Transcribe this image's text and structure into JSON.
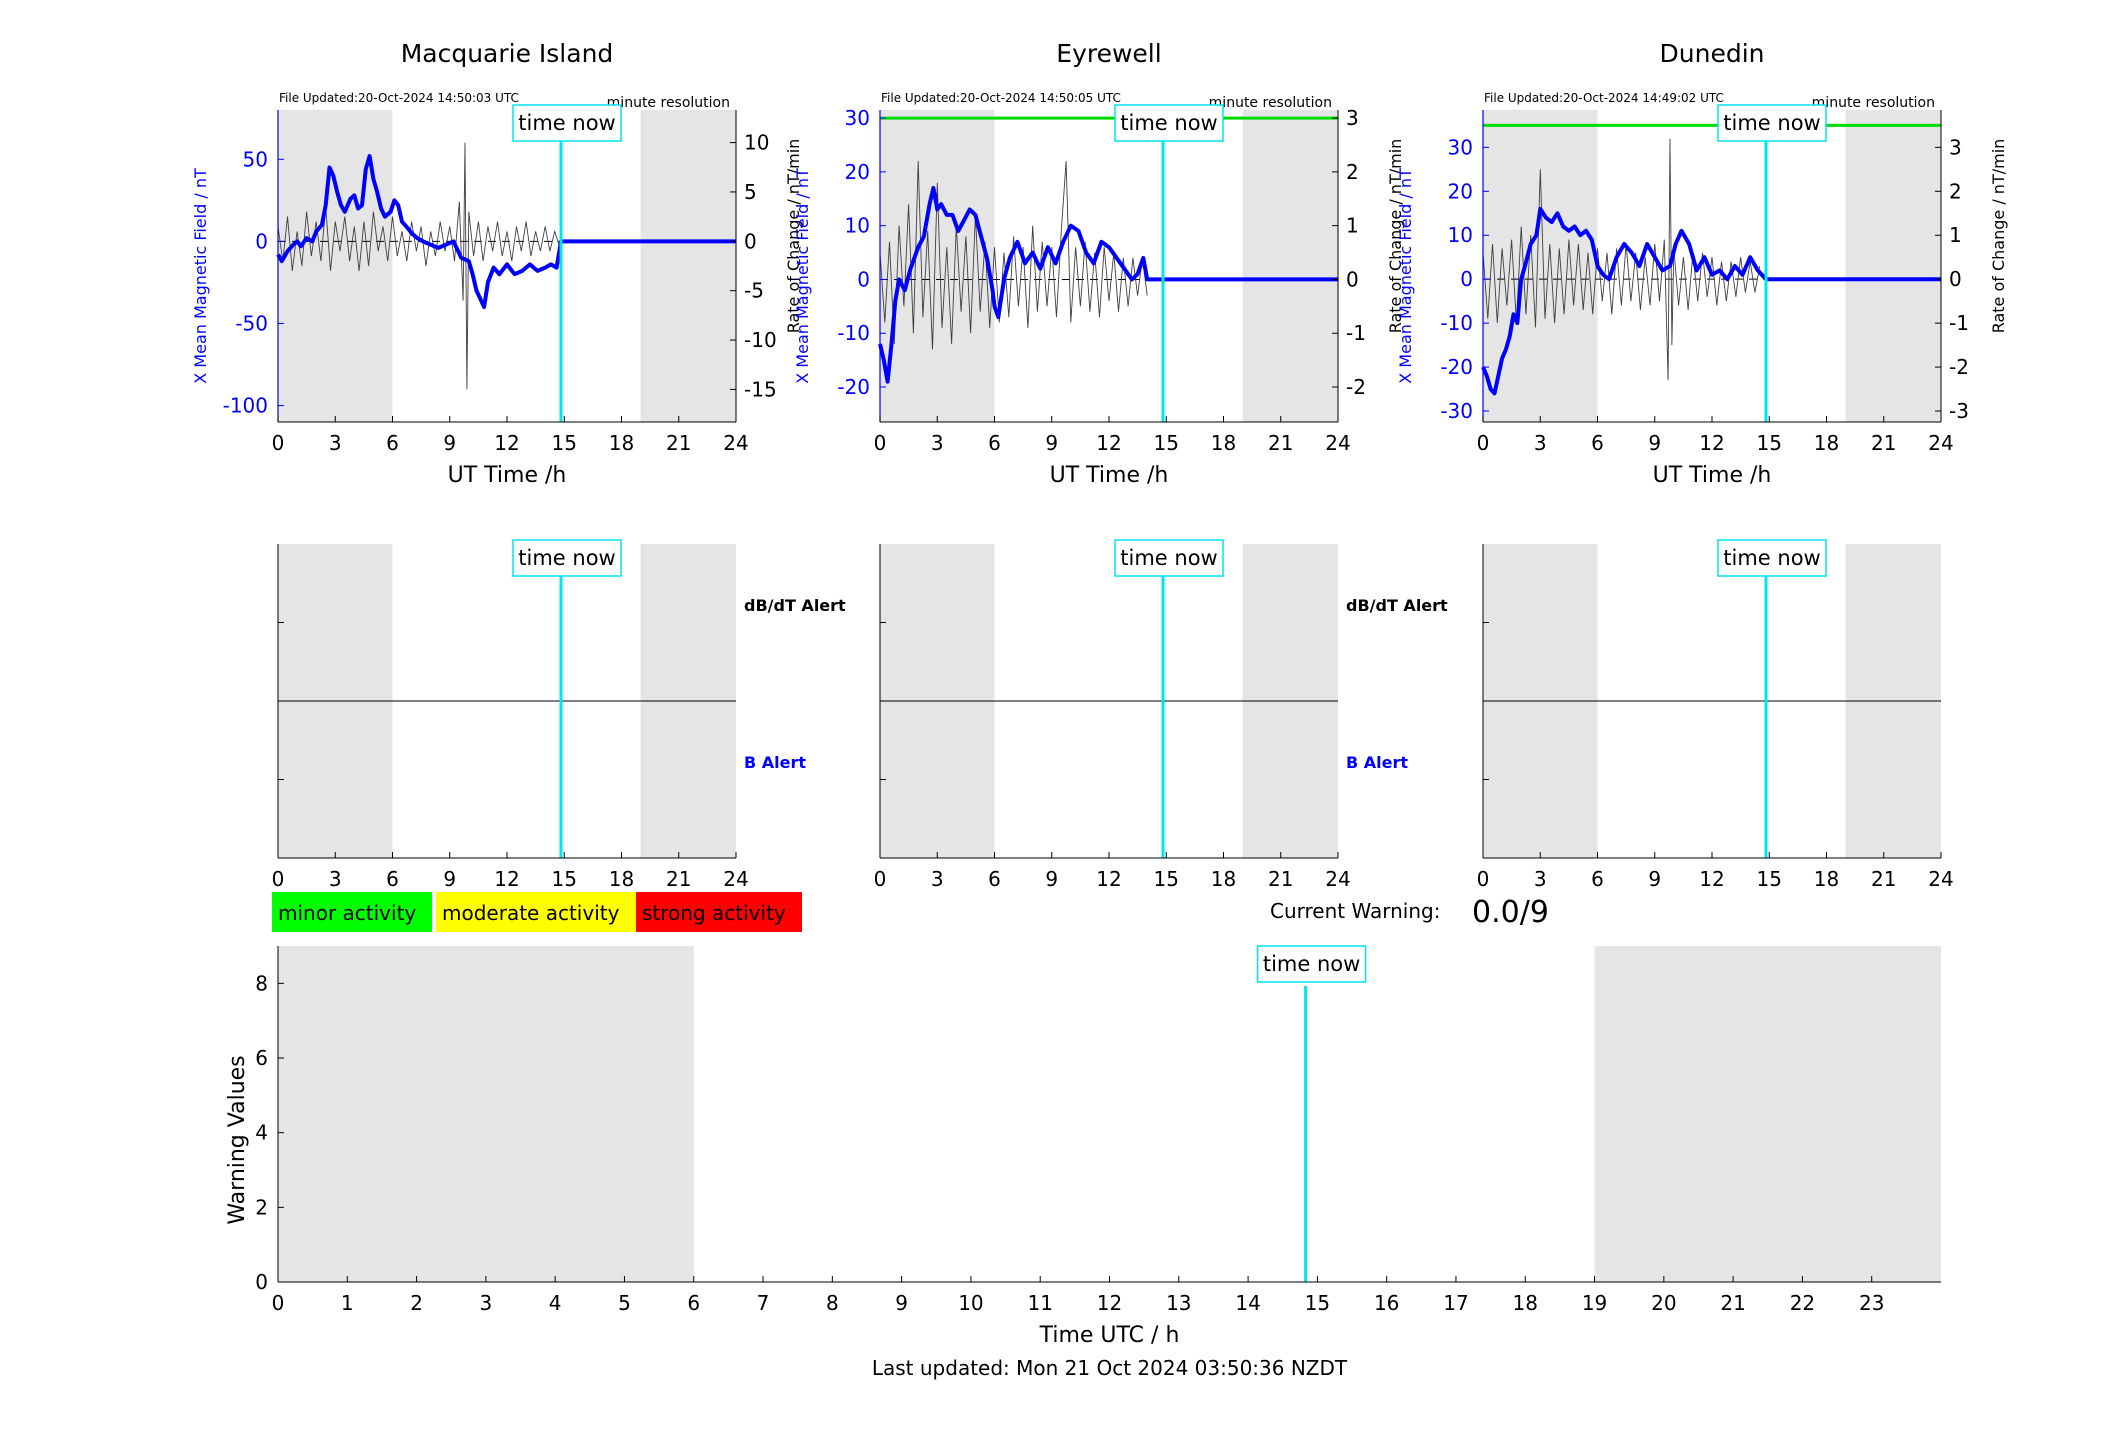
{
  "time_now_label": "time now",
  "footer": {
    "last_updated": "Last updated: Mon 21 Oct 2024 03:50:36 NZDT"
  },
  "colors": {
    "field": "#0000ff",
    "rate": "#404040",
    "time_now": "#00e5ee",
    "threshold": "#00dd00",
    "night_shade": "#e5e5e5",
    "minor": "#00ff00",
    "moderate": "#ffff00",
    "strong": "#ff0000"
  },
  "stations": [
    {
      "name": "Macquarie Island",
      "file_updated": "File Updated:20-Oct-2024 14:50:03 UTC",
      "resolution": "minute resolution",
      "ylabel_left": "X Mean Magnetic Field / nT",
      "ylabel_right": "Rate of Change / nT/min",
      "dbdt_alert": "dB/dT Alert",
      "b_alert": "B Alert"
    },
    {
      "name": "Eyrewell",
      "file_updated": "File Updated:20-Oct-2024 14:50:05 UTC",
      "resolution": "minute resolution",
      "ylabel_left": "X Mean Magnetic Field / nT",
      "ylabel_right": "Rate of Change / nT/min",
      "dbdt_alert": "dB/dT Alert",
      "b_alert": "B Alert"
    },
    {
      "name": "Dunedin",
      "file_updated": "File Updated:20-Oct-2024 14:49:02 UTC",
      "resolution": "minute resolution",
      "ylabel_left": "X Mean Magnetic Field / nT",
      "ylabel_right": "Rate of Change / nT/min",
      "dbdt_alert": "",
      "b_alert": ""
    }
  ],
  "legend": {
    "minor": "minor activity",
    "moderate": "moderate activity",
    "strong": "strong activity"
  },
  "current_warning": {
    "label": "Current Warning:",
    "value": "0.0/9"
  },
  "chart_data": [
    {
      "type": "line",
      "title": "Macquarie Island",
      "xlabel": "UT Time /h",
      "ylabel": "X Mean Magnetic Field / nT",
      "ylabel_right": "Rate of Change / nT/min",
      "xlim": [
        0,
        24
      ],
      "ylim": [
        -110,
        80
      ],
      "ylim_right": [
        -18.3,
        13.3
      ],
      "xticks": [
        0,
        3,
        6,
        9,
        12,
        15,
        18,
        21,
        24
      ],
      "yticks": [
        -100,
        -50,
        0,
        50
      ],
      "yticks_right": [
        -15,
        -10,
        -5,
        0,
        5,
        10
      ],
      "time_now": 14.83,
      "shaded_hours": [
        [
          0,
          6
        ],
        [
          19,
          24
        ]
      ],
      "series": [
        {
          "name": "X Mean Magnetic Field",
          "x": [
            0,
            0.2,
            0.5,
            0.8,
            1.0,
            1.2,
            1.5,
            1.8,
            2.0,
            2.3,
            2.5,
            2.7,
            2.9,
            3.1,
            3.3,
            3.5,
            3.8,
            4.0,
            4.2,
            4.4,
            4.6,
            4.8,
            5.0,
            5.2,
            5.4,
            5.6,
            5.9,
            6.1,
            6.3,
            6.5,
            6.8,
            7.0,
            7.3,
            7.6,
            8.0,
            8.4,
            8.8,
            9.2,
            9.6,
            10.0,
            10.2,
            10.4,
            10.6,
            10.8,
            11.0,
            11.3,
            11.6,
            12.0,
            12.4,
            12.8,
            13.2,
            13.6,
            14.0,
            14.3,
            14.6,
            14.83,
            24
          ],
          "values": [
            -8,
            -12,
            -6,
            -2,
            0,
            -3,
            2,
            0,
            6,
            10,
            22,
            45,
            40,
            30,
            22,
            18,
            26,
            28,
            20,
            22,
            44,
            52,
            38,
            30,
            20,
            15,
            18,
            25,
            22,
            12,
            8,
            5,
            2,
            0,
            -2,
            -4,
            -2,
            0,
            -10,
            -12,
            -20,
            -30,
            -35,
            -40,
            -25,
            -16,
            -20,
            -14,
            -20,
            -18,
            -14,
            -18,
            -16,
            -14,
            -16,
            0,
            0
          ]
        },
        {
          "name": "Rate of Change",
          "x": [
            0,
            0.25,
            0.5,
            0.75,
            1.0,
            1.25,
            1.5,
            1.75,
            2.0,
            2.25,
            2.5,
            2.75,
            3.0,
            3.25,
            3.5,
            3.75,
            4.0,
            4.25,
            4.5,
            4.75,
            5.0,
            5.25,
            5.5,
            5.75,
            6.0,
            6.25,
            6.5,
            6.75,
            7.0,
            7.25,
            7.5,
            7.75,
            8.0,
            8.25,
            8.5,
            8.75,
            9.0,
            9.25,
            9.5,
            9.7,
            9.8,
            9.9,
            10.0,
            10.25,
            10.5,
            10.75,
            11.0,
            11.25,
            11.5,
            11.75,
            12.0,
            12.25,
            12.5,
            12.75,
            13.0,
            13.25,
            13.5,
            13.75,
            14.0,
            14.25,
            14.5,
            14.75
          ],
          "values": [
            1.5,
            -2,
            2.5,
            -3,
            1,
            -2.5,
            3,
            -1.5,
            2,
            -2,
            3.5,
            -3,
            2,
            -1,
            2.5,
            -2,
            1.5,
            -3,
            2,
            -2.5,
            3,
            -1,
            1.5,
            -2,
            2.5,
            -1.5,
            1,
            -2,
            2,
            -1,
            1.5,
            -2.5,
            1,
            -1.5,
            2,
            -1,
            1.5,
            -2,
            4,
            -6,
            10,
            -15,
            3,
            -1.5,
            2,
            -2,
            1.5,
            -1,
            2,
            -1.5,
            1,
            -2,
            1.5,
            -1,
            2,
            -1.5,
            1,
            -1,
            1.5,
            -1,
            1,
            -0.5
          ]
        }
      ]
    },
    {
      "type": "line",
      "title": "Eyrewell",
      "xlabel": "UT Time /h",
      "ylabel": "X Mean Magnetic Field / nT",
      "ylabel_right": "Rate of Change / nT/min",
      "xlim": [
        0,
        24
      ],
      "ylim": [
        -26.5,
        31.5
      ],
      "ylim_right": [
        -2.65,
        3.15
      ],
      "xticks": [
        0,
        3,
        6,
        9,
        12,
        15,
        18,
        21,
        24
      ],
      "yticks": [
        -20,
        -10,
        0,
        10,
        20,
        30
      ],
      "yticks_right": [
        -2,
        -1,
        0,
        1,
        2,
        3
      ],
      "threshold": 30,
      "time_now": 14.83,
      "shaded_hours": [
        [
          0,
          6
        ],
        [
          19,
          24
        ]
      ],
      "series": [
        {
          "name": "X Mean Magnetic Field",
          "x": [
            0,
            0.2,
            0.4,
            0.6,
            0.8,
            1.0,
            1.3,
            1.6,
            2.0,
            2.3,
            2.6,
            2.8,
            3.0,
            3.2,
            3.5,
            3.8,
            4.1,
            4.4,
            4.7,
            5.0,
            5.3,
            5.6,
            5.9,
            6.0,
            6.2,
            6.5,
            6.8,
            7.2,
            7.6,
            8.0,
            8.4,
            8.8,
            9.2,
            9.6,
            10.0,
            10.4,
            10.8,
            11.2,
            11.6,
            12.0,
            12.4,
            12.8,
            13.2,
            13.5,
            13.8,
            14.0,
            14.3,
            14.6,
            14.83,
            24
          ],
          "values": [
            -12,
            -15,
            -19,
            -12,
            -4,
            0,
            -2,
            2,
            6,
            8,
            14,
            17,
            13,
            14,
            12,
            12,
            9,
            11,
            13,
            12,
            8,
            4,
            -2,
            -5,
            -7,
            0,
            4,
            7,
            3,
            5,
            2,
            6,
            3,
            7,
            10,
            9,
            5,
            3,
            7,
            6,
            4,
            2,
            0,
            1,
            4,
            0,
            0,
            0,
            0,
            0
          ]
        },
        {
          "name": "Rate of Change",
          "x": [
            0,
            0.25,
            0.5,
            0.75,
            1.0,
            1.25,
            1.5,
            1.75,
            2.0,
            2.25,
            2.5,
            2.75,
            3.0,
            3.25,
            3.5,
            3.75,
            4.0,
            4.25,
            4.5,
            4.75,
            5.0,
            5.25,
            5.5,
            5.75,
            6.0,
            6.25,
            6.5,
            6.75,
            7.0,
            7.25,
            7.5,
            7.75,
            8.0,
            8.25,
            8.5,
            8.75,
            9.0,
            9.25,
            9.5,
            9.75,
            10.0,
            10.25,
            10.5,
            10.75,
            11.0,
            11.25,
            11.5,
            11.75,
            12.0,
            12.25,
            12.5,
            12.75,
            13.0,
            13.25,
            13.5,
            13.75,
            14.0
          ],
          "values": [
            0.5,
            -0.8,
            0.7,
            -1.2,
            1.0,
            -0.5,
            1.4,
            -1.0,
            2.2,
            -0.7,
            0.9,
            -1.3,
            1.8,
            -0.9,
            0.6,
            -1.2,
            1.0,
            -0.6,
            0.8,
            -1.0,
            1.2,
            -0.6,
            0.7,
            -0.9,
            0.6,
            -0.8,
            0.5,
            -0.7,
            0.8,
            -0.5,
            0.6,
            -0.9,
            1.0,
            -0.6,
            0.7,
            -0.5,
            0.6,
            -0.7,
            0.9,
            2.2,
            -0.8,
            0.6,
            -0.5,
            0.7,
            -0.6,
            0.5,
            -0.7,
            0.6,
            -0.4,
            0.5,
            -0.6,
            0.4,
            -0.5,
            0.4,
            -0.3,
            0.4,
            -0.3
          ]
        }
      ]
    },
    {
      "type": "line",
      "title": "Dunedin",
      "xlabel": "UT Time /h",
      "ylabel": "X Mean Magnetic Field / nT",
      "ylabel_right": "Rate of Change / nT/min",
      "xlim": [
        0,
        24
      ],
      "ylim": [
        -32.5,
        38.5
      ],
      "ylim_right": [
        -3.25,
        3.85
      ],
      "xticks": [
        0,
        3,
        6,
        9,
        12,
        15,
        18,
        21,
        24
      ],
      "yticks": [
        -30,
        -20,
        -10,
        0,
        10,
        20,
        30
      ],
      "yticks_right": [
        -3,
        -2,
        -1,
        0,
        1,
        2,
        3
      ],
      "threshold": 35,
      "time_now": 14.83,
      "shaded_hours": [
        [
          0,
          6
        ],
        [
          19,
          24
        ]
      ],
      "series": [
        {
          "name": "X Mean Magnetic Field",
          "x": [
            0,
            0.2,
            0.4,
            0.6,
            0.8,
            1.0,
            1.2,
            1.4,
            1.6,
            1.8,
            2.0,
            2.2,
            2.5,
            2.8,
            3.0,
            3.3,
            3.6,
            3.9,
            4.2,
            4.5,
            4.8,
            5.1,
            5.4,
            5.7,
            6.0,
            6.3,
            6.6,
            7.0,
            7.4,
            7.8,
            8.2,
            8.6,
            9.0,
            9.4,
            9.8,
            10.1,
            10.4,
            10.8,
            11.2,
            11.6,
            12.0,
            12.4,
            12.8,
            13.2,
            13.6,
            14.0,
            14.4,
            14.83,
            24
          ],
          "values": [
            -20,
            -22,
            -25,
            -26,
            -22,
            -18,
            -16,
            -13,
            -8,
            -10,
            0,
            3,
            8,
            10,
            16,
            14,
            13,
            15,
            12,
            11,
            12,
            10,
            11,
            9,
            3,
            1,
            0,
            5,
            8,
            6,
            3,
            8,
            5,
            2,
            3,
            8,
            11,
            8,
            2,
            5,
            1,
            2,
            0,
            3,
            1,
            5,
            2,
            0,
            0
          ]
        },
        {
          "name": "Rate of Change",
          "x": [
            0,
            0.25,
            0.5,
            0.75,
            1.0,
            1.25,
            1.5,
            1.75,
            2.0,
            2.25,
            2.5,
            2.75,
            3.0,
            3.25,
            3.5,
            3.75,
            4.0,
            4.25,
            4.5,
            4.75,
            5.0,
            5.25,
            5.5,
            5.75,
            6.0,
            6.25,
            6.5,
            6.75,
            7.0,
            7.25,
            7.5,
            7.75,
            8.0,
            8.25,
            8.5,
            8.75,
            9.0,
            9.25,
            9.5,
            9.7,
            9.8,
            9.9,
            10.0,
            10.25,
            10.5,
            10.75,
            11.0,
            11.25,
            11.5,
            11.75,
            12.0,
            12.25,
            12.5,
            12.75,
            13.0,
            13.25,
            13.5,
            13.75,
            14.0,
            14.25,
            14.5
          ],
          "values": [
            0.6,
            -0.9,
            0.8,
            -1.0,
            0.7,
            -0.6,
            0.9,
            -1.0,
            1.2,
            -0.8,
            1.0,
            -1.1,
            2.5,
            -0.9,
            0.8,
            -1.0,
            0.7,
            -0.8,
            0.9,
            -0.6,
            0.8,
            -0.7,
            0.6,
            -0.8,
            0.7,
            -0.5,
            0.6,
            -0.8,
            0.7,
            -0.6,
            0.8,
            -0.5,
            0.6,
            -0.7,
            0.5,
            -0.6,
            0.8,
            -0.5,
            0.9,
            -2.3,
            3.2,
            -1.5,
            0.7,
            -0.6,
            0.5,
            -0.7,
            0.6,
            -0.5,
            0.6,
            -0.4,
            0.5,
            -0.6,
            0.4,
            -0.5,
            0.4,
            -0.4,
            0.5,
            -0.3,
            0.4,
            -0.3,
            0.3
          ]
        }
      ]
    },
    {
      "type": "line",
      "title": "",
      "xlabel": "",
      "ylabel": "",
      "xlim": [
        0,
        24
      ],
      "ylim": [
        0,
        2
      ],
      "xticks": [
        0,
        3,
        6,
        9,
        12,
        15,
        18,
        21,
        24
      ],
      "time_now": 14.83,
      "shaded_hours": [
        [
          0,
          6
        ],
        [
          19,
          24
        ]
      ],
      "labels": [
        "dB/dT Alert",
        "B Alert"
      ],
      "series": []
    },
    {
      "type": "line",
      "title": "",
      "xlabel": "",
      "ylabel": "",
      "xlim": [
        0,
        24
      ],
      "ylim": [
        0,
        2
      ],
      "xticks": [
        0,
        3,
        6,
        9,
        12,
        15,
        18,
        21,
        24
      ],
      "time_now": 14.83,
      "shaded_hours": [
        [
          0,
          6
        ],
        [
          19,
          24
        ]
      ],
      "labels": [
        "dB/dT Alert",
        "B Alert"
      ],
      "series": []
    },
    {
      "type": "line",
      "title": "",
      "xlabel": "",
      "ylabel": "",
      "xlim": [
        0,
        24
      ],
      "ylim": [
        0,
        2
      ],
      "xticks": [
        0,
        3,
        6,
        9,
        12,
        15,
        18,
        21,
        24
      ],
      "time_now": 14.83,
      "shaded_hours": [
        [
          0,
          6
        ],
        [
          19,
          24
        ]
      ],
      "series": []
    },
    {
      "type": "bar",
      "title": "",
      "xlabel": "Time UTC / h",
      "ylabel": "Warning Values",
      "xlim": [
        0,
        24
      ],
      "ylim": [
        0,
        9
      ],
      "xticks": [
        0,
        1,
        2,
        3,
        4,
        5,
        6,
        7,
        8,
        9,
        10,
        11,
        12,
        13,
        14,
        15,
        16,
        17,
        18,
        19,
        20,
        21,
        22,
        23
      ],
      "yticks": [
        0,
        2,
        4,
        6,
        8
      ],
      "time_now": 14.83,
      "shaded_hours": [
        [
          0,
          6
        ],
        [
          19,
          24
        ]
      ],
      "values": []
    }
  ]
}
